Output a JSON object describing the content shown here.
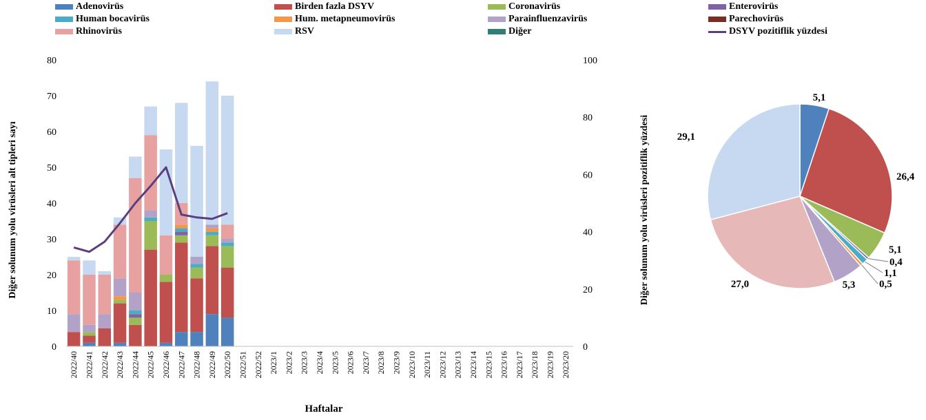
{
  "chart_data": [
    {
      "type": "bar",
      "stacked": true,
      "ylabel": "Diğer solunum yolu virüsleri alt tipleri sayı",
      "y2label": "Diğer solunum yolu virüsleri pozitiflik yüzdesi",
      "xlabel": "Haftalar",
      "ylim": [
        0,
        80
      ],
      "yticks": [
        0,
        10,
        20,
        30,
        40,
        50,
        60,
        70,
        80
      ],
      "y2lim": [
        0,
        100
      ],
      "y2ticks": [
        0,
        20,
        40,
        60,
        80,
        100
      ],
      "grid": false,
      "legend_position": "top",
      "categories": [
        "2022/40",
        "2022/41",
        "2022/42",
        "2022/43",
        "2022/44",
        "2022/45",
        "2022/46",
        "2022/47",
        "2022/48",
        "2022/49",
        "2022/50",
        "2022/51",
        "2022/52",
        "2023/1",
        "2023/2",
        "2023/3",
        "2023/4",
        "2023/5",
        "2023/6",
        "2023/7",
        "2023/8",
        "2023/9",
        "2023/10",
        "2023/11",
        "2023/12",
        "2023/13",
        "2023/14",
        "2023/15",
        "2023/16",
        "2023/17",
        "2023/18",
        "2023/19",
        "2023/20"
      ],
      "series": [
        {
          "name": "Adenovirüs",
          "color": "#4f81bd",
          "values": [
            0,
            1,
            0,
            1,
            0,
            0,
            1,
            4,
            4,
            9,
            8,
            0,
            0,
            0,
            0,
            0,
            0,
            0,
            0,
            0,
            0,
            0,
            0,
            0,
            0,
            0,
            0,
            0,
            0,
            0,
            0,
            0,
            0
          ]
        },
        {
          "name": "Birden fazla DSYV",
          "color": "#c0504d",
          "values": [
            4,
            2,
            5,
            11,
            6,
            27,
            17,
            25,
            15,
            19,
            14,
            0,
            0,
            0,
            0,
            0,
            0,
            0,
            0,
            0,
            0,
            0,
            0,
            0,
            0,
            0,
            0,
            0,
            0,
            0,
            0,
            0,
            0
          ]
        },
        {
          "name": "Coronavirüs",
          "color": "#9bbb59",
          "values": [
            0,
            1,
            0,
            1,
            2,
            8,
            2,
            2,
            3,
            3,
            6,
            0,
            0,
            0,
            0,
            0,
            0,
            0,
            0,
            0,
            0,
            0,
            0,
            0,
            0,
            0,
            0,
            0,
            0,
            0,
            0,
            0,
            0
          ]
        },
        {
          "name": "Enterovirüs",
          "color": "#8064a2",
          "values": [
            0,
            0,
            0,
            0,
            1,
            0,
            0,
            1,
            0,
            0,
            0,
            0,
            0,
            0,
            0,
            0,
            0,
            0,
            0,
            0,
            0,
            0,
            0,
            0,
            0,
            0,
            0,
            0,
            0,
            0,
            0,
            0,
            0
          ]
        },
        {
          "name": "Human bocavirüs",
          "color": "#4bacc6",
          "values": [
            0,
            0,
            0,
            0,
            1,
            1,
            0,
            1,
            1,
            1,
            1,
            0,
            0,
            0,
            0,
            0,
            0,
            0,
            0,
            0,
            0,
            0,
            0,
            0,
            0,
            0,
            0,
            0,
            0,
            0,
            0,
            0,
            0
          ]
        },
        {
          "name": "Hum. metapneumovirüs",
          "color": "#f79646",
          "values": [
            0,
            0,
            0,
            1,
            0,
            0,
            0,
            1,
            0,
            1,
            0,
            0,
            0,
            0,
            0,
            0,
            0,
            0,
            0,
            0,
            0,
            0,
            0,
            0,
            0,
            0,
            0,
            0,
            0,
            0,
            0,
            0,
            0
          ]
        },
        {
          "name": "Parainfluenzavirüs",
          "color": "#b3a2c7",
          "values": [
            5,
            2,
            4,
            5,
            5,
            2,
            0,
            0,
            2,
            1,
            1,
            0,
            0,
            0,
            0,
            0,
            0,
            0,
            0,
            0,
            0,
            0,
            0,
            0,
            0,
            0,
            0,
            0,
            0,
            0,
            0,
            0,
            0
          ]
        },
        {
          "name": "Parechovirüs",
          "color": "#7b2c25",
          "values": [
            0,
            0,
            0,
            0,
            0,
            0,
            0,
            0,
            0,
            0,
            0,
            0,
            0,
            0,
            0,
            0,
            0,
            0,
            0,
            0,
            0,
            0,
            0,
            0,
            0,
            0,
            0,
            0,
            0,
            0,
            0,
            0,
            0
          ]
        },
        {
          "name": "Rhinovirüs",
          "color": "#e6a1a0",
          "values": [
            15,
            14,
            11,
            15,
            32,
            21,
            11,
            6,
            0,
            0,
            4,
            0,
            0,
            0,
            0,
            0,
            0,
            0,
            0,
            0,
            0,
            0,
            0,
            0,
            0,
            0,
            0,
            0,
            0,
            0,
            0,
            0,
            0
          ]
        },
        {
          "name": "RSV",
          "color": "#c6d9f1",
          "values": [
            1,
            4,
            1,
            2,
            6,
            8,
            24,
            28,
            31,
            40,
            36,
            0,
            0,
            0,
            0,
            0,
            0,
            0,
            0,
            0,
            0,
            0,
            0,
            0,
            0,
            0,
            0,
            0,
            0,
            0,
            0,
            0,
            0
          ]
        },
        {
          "name": "Diğer",
          "color": "#2f7f73",
          "values": [
            0,
            0,
            0,
            0,
            0,
            0,
            0,
            0,
            0,
            0,
            0,
            0,
            0,
            0,
            0,
            0,
            0,
            0,
            0,
            0,
            0,
            0,
            0,
            0,
            0,
            0,
            0,
            0,
            0,
            0,
            0,
            0,
            0
          ]
        }
      ],
      "line_series": {
        "name": "DSYV pozitiflik yüzdesi",
        "color": "#5a3f80",
        "axis": "right",
        "values": [
          34.5,
          33,
          36.5,
          43,
          50,
          56,
          62.5,
          46,
          45,
          44.5,
          46.5
        ]
      }
    },
    {
      "type": "pie",
      "slices": [
        {
          "label": "5,1",
          "value": 5.1,
          "color": "#4f81bd"
        },
        {
          "label": "26,4",
          "value": 26.4,
          "color": "#c0504d"
        },
        {
          "label": "5,1",
          "value": 5.1,
          "color": "#9bbb59"
        },
        {
          "label": "0,4",
          "value": 0.4,
          "color": "#8064a2"
        },
        {
          "label": "1,1",
          "value": 1.1,
          "color": "#4bacc6"
        },
        {
          "label": "0,5",
          "value": 0.5,
          "color": "#f79646"
        },
        {
          "label": "5,3",
          "value": 5.3,
          "color": "#b3a2c7"
        },
        {
          "label": "27,0",
          "value": 27.0,
          "color": "#e6b8b7"
        },
        {
          "label": "29,1",
          "value": 29.1,
          "color": "#c6d9f1"
        }
      ]
    }
  ]
}
